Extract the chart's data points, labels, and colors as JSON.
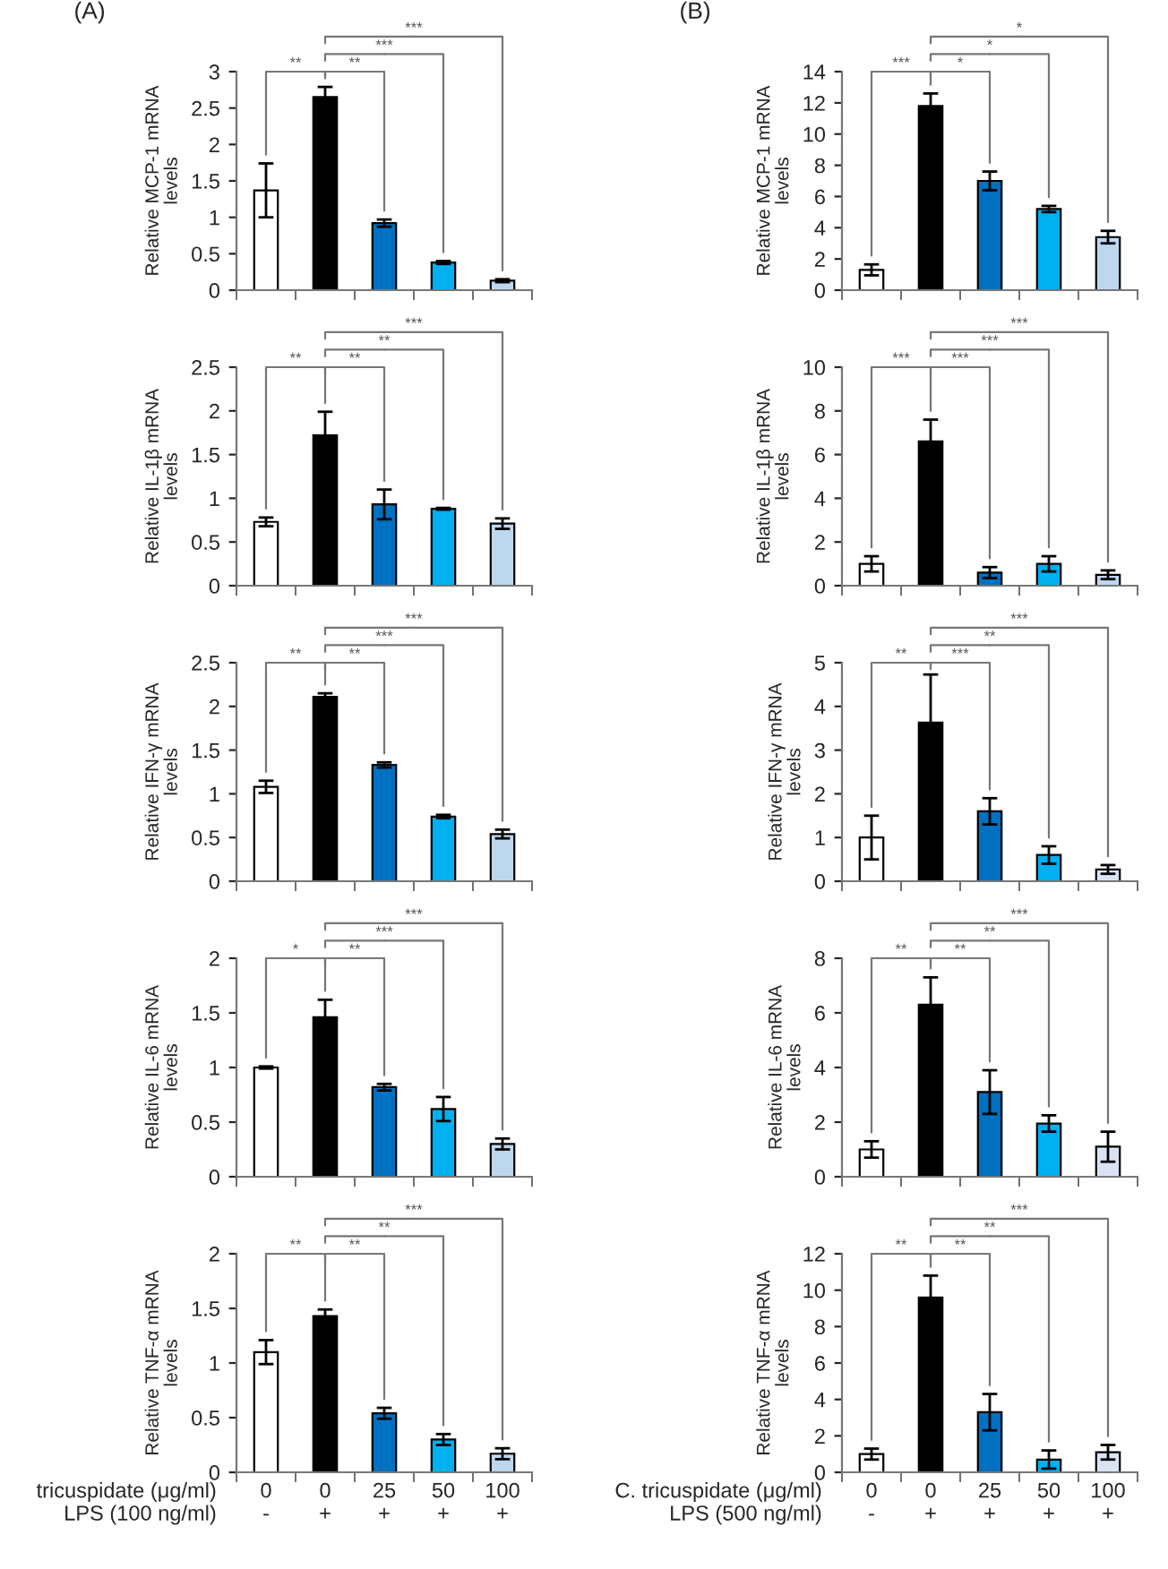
{
  "chart_data": [
    {
      "type": "bar",
      "title": "(A)",
      "ylabel": "Relative MCP-1 mRNA\nlevels",
      "categories": [
        null,
        null,
        null,
        null,
        null
      ],
      "colors": [
        "#ffffff",
        "#000000",
        "#0070c0",
        "#00b0f0",
        "#bdd7ee"
      ],
      "values": [
        1.37,
        2.65,
        0.92,
        0.38,
        0.13
      ],
      "errors": [
        0.37,
        0.14,
        0.05,
        0.02,
        0.02
      ],
      "ylim": [
        0,
        3
      ],
      "yticks": [
        0,
        0.5,
        1,
        1.5,
        2,
        2.5,
        3
      ],
      "tick_labels": "y",
      "annotations": [
        "**",
        "**",
        "***",
        "***"
      ]
    },
    {
      "type": "bar",
      "title": "(B)",
      "ylabel": "Relative MCP-1 mRNA\nlevels",
      "categories": [
        null,
        null,
        null,
        null,
        null
      ],
      "colors": [
        "#ffffff",
        "#000000",
        "#0070c0",
        "#00b0f0",
        "#bdd7ee"
      ],
      "values": [
        1.3,
        11.8,
        7.0,
        5.2,
        3.4
      ],
      "errors": [
        0.35,
        0.8,
        0.6,
        0.2,
        0.4
      ],
      "ylim": [
        0,
        14
      ],
      "yticks": [
        0,
        2,
        4,
        6,
        8,
        10,
        12,
        14
      ],
      "tick_labels": "y",
      "annotations": [
        "***",
        "*",
        "*",
        "*"
      ]
    },
    {
      "type": "bar",
      "ylabel": "Relative IL-1β mRNA\nlevels",
      "categories": [
        null,
        null,
        null,
        null,
        null
      ],
      "colors": [
        "#ffffff",
        "#000000",
        "#0070c0",
        "#00b0f0",
        "#bdd7ee"
      ],
      "values": [
        0.73,
        1.72,
        0.93,
        0.88,
        0.71
      ],
      "errors": [
        0.05,
        0.27,
        0.17,
        0.01,
        0.06
      ],
      "ylim": [
        0,
        2.5
      ],
      "yticks": [
        0,
        0.5,
        1,
        1.5,
        2,
        2.5
      ],
      "tick_labels": "y",
      "annotations": [
        "**",
        "**",
        "**",
        "***"
      ]
    },
    {
      "type": "bar",
      "ylabel": "Relative IL-1β mRNA\nlevels",
      "categories": [
        null,
        null,
        null,
        null,
        null
      ],
      "colors": [
        "#ffffff",
        "#000000",
        "#0070c0",
        "#00b0f0",
        "#bdd7ee"
      ],
      "values": [
        1.0,
        6.6,
        0.6,
        1.0,
        0.5
      ],
      "errors": [
        0.35,
        1.0,
        0.25,
        0.35,
        0.2
      ],
      "ylim": [
        0,
        10
      ],
      "yticks": [
        0,
        2,
        4,
        6,
        8,
        10
      ],
      "tick_labels": "y",
      "annotations": [
        "***",
        "***",
        "***",
        "***"
      ]
    },
    {
      "type": "bar",
      "ylabel": "Relative IFN-γ mRNA\nlevels",
      "categories": [
        null,
        null,
        null,
        null,
        null
      ],
      "colors": [
        "#ffffff",
        "#000000",
        "#0070c0",
        "#00b0f0",
        "#bdd7ee"
      ],
      "values": [
        1.08,
        2.11,
        1.33,
        0.74,
        0.54
      ],
      "errors": [
        0.07,
        0.04,
        0.03,
        0.02,
        0.05
      ],
      "ylim": [
        0,
        2.5
      ],
      "yticks": [
        0,
        0.5,
        1,
        1.5,
        2,
        2.5
      ],
      "tick_labels": "y",
      "annotations": [
        "**",
        "**",
        "***",
        "***"
      ]
    },
    {
      "type": "bar",
      "ylabel": "Relative IFN-γ mRNA\nlevels",
      "categories": [
        null,
        null,
        null,
        null,
        null
      ],
      "colors": [
        "#ffffff",
        "#000000",
        "#0070c0",
        "#00b0f0",
        "#dae3f3"
      ],
      "values": [
        1.0,
        3.63,
        1.6,
        0.6,
        0.27
      ],
      "errors": [
        0.5,
        1.1,
        0.3,
        0.2,
        0.1
      ],
      "ylim": [
        0,
        5
      ],
      "yticks": [
        0,
        1,
        2,
        3,
        4,
        5
      ],
      "tick_labels": "y",
      "annotations": [
        "**",
        "***",
        "**",
        "***"
      ]
    },
    {
      "type": "bar",
      "ylabel": "Relative IL-6 mRNA\nlevels",
      "categories": [
        null,
        null,
        null,
        null,
        null
      ],
      "colors": [
        "#ffffff",
        "#000000",
        "#0070c0",
        "#00b0f0",
        "#bdd7ee"
      ],
      "values": [
        1.0,
        1.46,
        0.82,
        0.62,
        0.3
      ],
      "errors": [
        0.01,
        0.16,
        0.03,
        0.11,
        0.05
      ],
      "ylim": [
        0,
        2
      ],
      "yticks": [
        0,
        0.5,
        1,
        1.5,
        2
      ],
      "tick_labels": "y",
      "annotations": [
        "*",
        "**",
        "***",
        "***"
      ]
    },
    {
      "type": "bar",
      "ylabel": "Relative IL-6 mRNA\nlevels",
      "categories": [
        null,
        null,
        null,
        null,
        null
      ],
      "colors": [
        "#ffffff",
        "#000000",
        "#0070c0",
        "#00b0f0",
        "#dae3f3"
      ],
      "values": [
        1.0,
        6.3,
        3.1,
        1.95,
        1.1
      ],
      "errors": [
        0.3,
        1.0,
        0.8,
        0.3,
        0.55
      ],
      "ylim": [
        0,
        8
      ],
      "yticks": [
        0,
        2,
        4,
        6,
        8
      ],
      "tick_labels": "y",
      "annotations": [
        "**",
        "**",
        "**",
        "***"
      ]
    },
    {
      "type": "bar",
      "ylabel": "Relative TNF-α mRNA\nlevels",
      "xlabel": "tricuspidate (μg/ml)\nLPS (100 ng/ml)",
      "categories": [
        "0\n-",
        "0\n+",
        "25\n+",
        "50\n+",
        "100\n+"
      ],
      "colors": [
        "#ffffff",
        "#000000",
        "#0070c0",
        "#00b0f0",
        "#bdd7ee"
      ],
      "values": [
        1.1,
        1.43,
        0.54,
        0.3,
        0.17
      ],
      "errors": [
        0.11,
        0.06,
        0.05,
        0.05,
        0.05
      ],
      "ylim": [
        0,
        2
      ],
      "yticks": [
        0,
        0.5,
        1,
        1.5,
        2
      ],
      "annotations": [
        "**",
        "**",
        "**",
        "***"
      ]
    },
    {
      "type": "bar",
      "ylabel": "Relative TNF-α mRNA\nlevels",
      "xlabel": "C. tricuspidate (μg/ml)\nLPS (500 ng/ml)",
      "categories": [
        "0\n-",
        "0\n+",
        "25\n+",
        "50\n+",
        "100\n+"
      ],
      "colors": [
        "#ffffff",
        "#000000",
        "#0070c0",
        "#00b0f0",
        "#dae3f3"
      ],
      "values": [
        1.0,
        9.6,
        3.3,
        0.7,
        1.1
      ],
      "errors": [
        0.3,
        1.2,
        1.0,
        0.5,
        0.4
      ],
      "ylim": [
        0,
        12
      ],
      "yticks": [
        0,
        2,
        4,
        6,
        8,
        10,
        12
      ],
      "annotations": [
        "**",
        "**",
        "**",
        "***"
      ]
    }
  ]
}
